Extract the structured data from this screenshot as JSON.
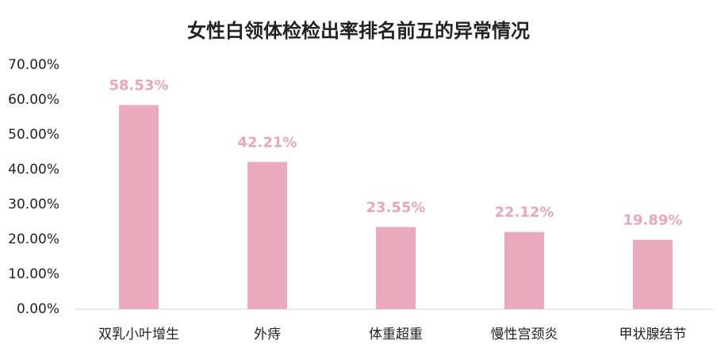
{
  "chart_data": {
    "type": "bar",
    "title": "女性白领体检检出率排名前五的异常情况",
    "categories": [
      "双乳小叶增生",
      "外痔",
      "体重超重",
      "慢性宫颈炎",
      "甲状腺结节"
    ],
    "values": [
      58.53,
      42.21,
      23.55,
      22.12,
      19.89
    ],
    "value_labels": [
      "58.53%",
      "42.21%",
      "23.55%",
      "22.12%",
      "19.89%"
    ],
    "color": "#e8aabc",
    "value_label_color": "#e9a5b9",
    "ylim": [
      0,
      70
    ],
    "yticks": [
      {
        "value": 0,
        "label": "0.00%"
      },
      {
        "value": 10,
        "label": "10.00%"
      },
      {
        "value": 20,
        "label": "20.00%"
      },
      {
        "value": 30,
        "label": "30.00%"
      },
      {
        "value": 40,
        "label": "40.00%"
      },
      {
        "value": 50,
        "label": "50.00%"
      },
      {
        "value": 60,
        "label": "60.00%"
      },
      {
        "value": 70,
        "label": "70.00%"
      }
    ],
    "grid": false
  }
}
